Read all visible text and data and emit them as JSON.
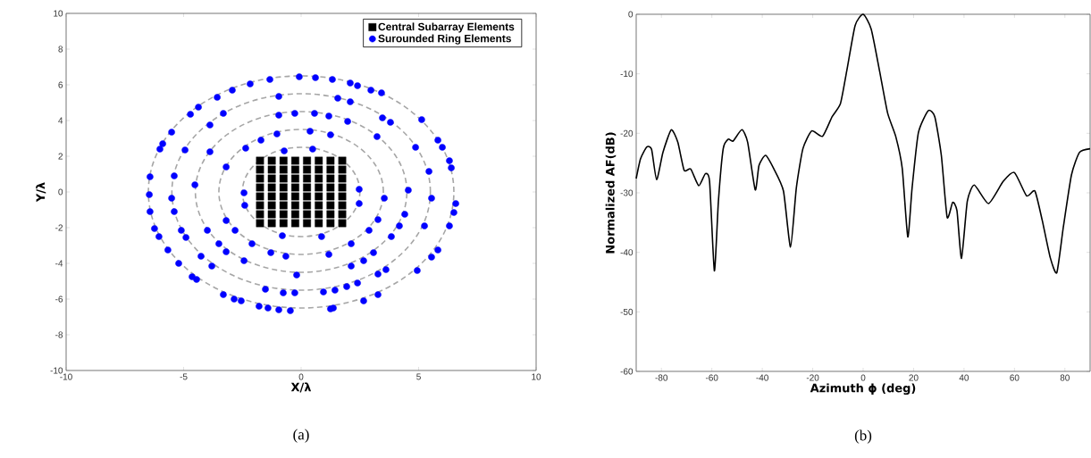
{
  "chart_data": [
    {
      "type": "scatter",
      "xlabel": "X/λ",
      "ylabel": "Y/λ",
      "xlim": [
        -10,
        10
      ],
      "ylim": [
        -10,
        10
      ],
      "xticks": [
        -10,
        -5,
        0,
        5,
        10
      ],
      "yticks": [
        -10,
        -8,
        -6,
        -4,
        -2,
        0,
        2,
        4,
        6,
        8,
        10
      ],
      "legend": "top right",
      "annotations": [
        "(a)"
      ],
      "series": [
        {
          "name": "Central Subarray Elements",
          "color": "#000000",
          "marker": "square",
          "x": [
            -1.75,
            -1.25,
            -0.75,
            -0.25,
            0.25,
            0.75,
            1.25,
            1.75,
            -1.75,
            -1.25,
            -0.75,
            -0.25,
            0.25,
            0.75,
            1.25,
            1.75,
            -1.75,
            -1.25,
            -0.75,
            -0.25,
            0.25,
            0.75,
            1.25,
            1.75,
            -1.75,
            -1.25,
            -0.75,
            -0.25,
            0.25,
            0.75,
            1.25,
            1.75,
            -1.75,
            -1.25,
            -0.75,
            -0.25,
            0.25,
            0.75,
            1.25,
            1.75,
            -1.75,
            -1.25,
            -0.75,
            -0.25,
            0.25,
            0.75,
            1.25,
            1.75,
            -1.75,
            -1.25,
            -0.75,
            -0.25,
            0.25,
            0.75,
            1.25,
            1.75,
            -1.75,
            -1.25,
            -0.75,
            -0.25,
            0.25,
            0.75,
            1.25,
            1.75
          ],
          "values": [
            1.75,
            1.75,
            1.75,
            1.75,
            1.75,
            1.75,
            1.75,
            1.75,
            1.25,
            1.25,
            1.25,
            1.25,
            1.25,
            1.25,
            1.25,
            1.25,
            0.75,
            0.75,
            0.75,
            0.75,
            0.75,
            0.75,
            0.75,
            0.75,
            0.25,
            0.25,
            0.25,
            0.25,
            0.25,
            0.25,
            0.25,
            0.25,
            -0.25,
            -0.25,
            -0.25,
            -0.25,
            -0.25,
            -0.25,
            -0.25,
            -0.25,
            -0.75,
            -0.75,
            -0.75,
            -0.75,
            -0.75,
            -0.75,
            -0.75,
            -0.75,
            -1.25,
            -1.25,
            -1.25,
            -1.25,
            -1.25,
            -1.25,
            -1.25,
            -1.25,
            -1.75,
            -1.75,
            -1.75,
            -1.75,
            -1.75,
            -1.75,
            -1.75,
            -1.75
          ]
        },
        {
          "name": "Surounded Ring Elements",
          "color": "#0000ff",
          "marker": "circle",
          "x": [
            -1.33,
            -2.17,
            -2.93,
            -3.57,
            -4.37,
            -4.71,
            -5.51,
            -5.89,
            -6.01,
            -6.43,
            -6.46,
            -6.43,
            -6.24,
            -6.05,
            -5.67,
            -5.21,
            -4.64,
            -4.45,
            -3.31,
            -2.85,
            -2.55,
            -1.79,
            -1.41,
            -0.95,
            -0.46,
            1.25,
            1.37,
            2.66,
            3.27,
            4.94,
            5.55,
            5.82,
            6.31,
            6.5,
            6.58,
            6.39,
            6.31,
            6.01,
            5.82,
            5.13,
            3.42,
            2.97,
            2.4,
            2.09,
            1.33,
            0.61,
            -0.08,
            -0.95,
            -3.31,
            -3.88,
            -4.94,
            -5.4,
            -5.51,
            -5.4,
            -5.1,
            -4.9,
            -4.26,
            -3.8,
            -1.52,
            -0.76,
            -0.27,
            0.95,
            1.44,
            1.94,
            2.4,
            3.27,
            3.61,
            5.25,
            5.55,
            5.44,
            4.87,
            3.8,
            3.46,
            2.09,
            1.56,
            -0.27,
            -0.95,
            -3.88,
            -4.52,
            -3.99,
            -3.5,
            -3.19,
            -2.43,
            -0.19,
            2.13,
            2.66,
            3.08,
            3.84,
            4.18,
            4.41,
            4.56,
            3.23,
            1.98,
            1.18,
            0.57,
            -1.03,
            -1.71,
            -2.36,
            -3.19,
            -3.19,
            -2.81,
            -2.09,
            -1.29,
            -0.65,
            1.18,
            2.13,
            2.89,
            3.27,
            3.54,
            1.25,
            0.38,
            -0.72,
            0.49,
            2.47,
            2.47,
            0.87,
            -0.8,
            -2.43,
            -2.4
          ],
          "values": [
            6.3,
            6.05,
            5.7,
            5.3,
            4.75,
            4.35,
            3.35,
            2.7,
            2.4,
            0.85,
            -0.15,
            -1.1,
            -2.05,
            -2.5,
            -3.25,
            -4.0,
            -4.75,
            -4.9,
            -5.75,
            -6.0,
            -6.1,
            -6.4,
            -6.5,
            -6.6,
            -6.65,
            -6.55,
            -6.5,
            -6.1,
            -5.75,
            -4.4,
            -3.65,
            -3.25,
            -1.9,
            -1.15,
            -0.65,
            1.35,
            1.75,
            2.5,
            2.9,
            4.05,
            5.55,
            5.7,
            5.95,
            6.1,
            6.3,
            6.4,
            6.45,
            5.35,
            4.4,
            3.75,
            2.35,
            0.9,
            -0.35,
            -1.1,
            -2.15,
            -2.55,
            -3.6,
            -4.15,
            -5.45,
            -5.65,
            -5.65,
            -5.6,
            -5.5,
            -5.3,
            -5.1,
            -4.6,
            -4.35,
            -1.9,
            -0.35,
            1.15,
            2.5,
            3.9,
            4.15,
            5.05,
            5.25,
            4.4,
            4.3,
            2.25,
            0.4,
            -2.15,
            -2.9,
            -3.35,
            -3.85,
            -4.65,
            -4.15,
            -3.85,
            -3.4,
            -2.5,
            -1.9,
            -1.25,
            0.1,
            3.1,
            3.95,
            4.25,
            4.4,
            3.25,
            2.9,
            2.45,
            1.4,
            -1.6,
            -2.15,
            -2.9,
            -3.4,
            -3.6,
            -3.5,
            -2.9,
            -2.15,
            -1.55,
            -0.35,
            3.2,
            3.4,
            2.3,
            2.4,
            0.15,
            -0.65,
            -2.5,
            -2.45,
            -0.05,
            -0.75
          ]
        }
      ]
    },
    {
      "type": "line",
      "xlabel": "Azimuth ϕ (deg)",
      "ylabel": "Normalized AF(dB)",
      "xlim": [
        -90,
        90
      ],
      "ylim": [
        -60,
        0
      ],
      "xticks": [
        -80,
        -60,
        -40,
        -20,
        0,
        20,
        40,
        60,
        80
      ],
      "yticks": [
        -60,
        -50,
        -40,
        -30,
        -20,
        -10,
        0
      ],
      "annotations": [
        "(b)"
      ],
      "series": [
        {
          "color": "#000000",
          "x": [
            -90,
            -88.3,
            -85.8,
            -83.9,
            -81.9,
            -79.4,
            -76.1,
            -73.5,
            -71,
            -68.4,
            -65.2,
            -62.6,
            -60.9,
            -59,
            -57.4,
            -55.5,
            -53.5,
            -51.6,
            -48.1,
            -45.8,
            -42.8,
            -41.3,
            -38.7,
            -35.5,
            -31.6,
            -28.8,
            -26.5,
            -23.9,
            -20.4,
            -16.1,
            -12.3,
            -9,
            -6.5,
            -3.2,
            0,
            3.2,
            6.5,
            9.7,
            12.9,
            15.5,
            17.7,
            19.4,
            21.9,
            25.8,
            28.4,
            31,
            33.3,
            35.5,
            37.2,
            39,
            41.3,
            44.1,
            49.7,
            55.5,
            60,
            64.8,
            68.1,
            71,
            74.2,
            76.8,
            79.4,
            82.6,
            85.8,
            90
          ],
          "values": [
            -27.6,
            -24.3,
            -22.3,
            -22.7,
            -27.8,
            -23.2,
            -19.4,
            -21.5,
            -26.2,
            -26,
            -28.8,
            -26.8,
            -28.1,
            -43.1,
            -31.4,
            -22.6,
            -21,
            -21.3,
            -19.4,
            -21.5,
            -29.5,
            -25.4,
            -23.7,
            -25.9,
            -29.7,
            -39.1,
            -29.2,
            -22.6,
            -19.6,
            -20.5,
            -17.2,
            -15,
            -9.5,
            -1.9,
            0,
            -2.5,
            -9.5,
            -16.6,
            -20.5,
            -25.9,
            -37.4,
            -29.2,
            -19.9,
            -16.2,
            -17.2,
            -23.7,
            -34.1,
            -31.6,
            -33,
            -41,
            -31.4,
            -28.7,
            -31.8,
            -28.1,
            -26.6,
            -30.5,
            -29.7,
            -34.6,
            -40.9,
            -43.4,
            -35.7,
            -27,
            -23.2,
            -22.6
          ]
        }
      ]
    }
  ]
}
